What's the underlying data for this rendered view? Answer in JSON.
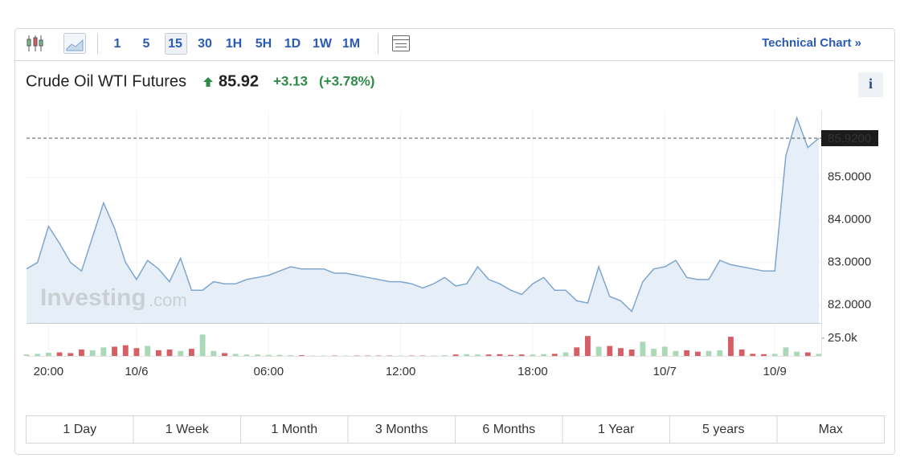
{
  "toolbar": {
    "intervals": [
      "1",
      "5",
      "15",
      "30",
      "1H",
      "5H",
      "1D",
      "1W",
      "1M"
    ],
    "technical_chart": "Technical Chart »"
  },
  "header": {
    "name": "Crude Oil WTI Futures",
    "price": "85.92",
    "change": "+3.13",
    "change_pct": "(+3.78%)",
    "info": "i"
  },
  "watermark": {
    "brand": "Investing",
    "suffix": ".com"
  },
  "chart_data": {
    "type": "line",
    "categories": [
      null,
      null,
      "20:00",
      null,
      null,
      null,
      null,
      null,
      null,
      null,
      "10/6",
      null,
      null,
      null,
      null,
      null,
      null,
      null,
      null,
      null,
      null,
      null,
      "06:00",
      null,
      null,
      null,
      null,
      null,
      null,
      null,
      null,
      null,
      null,
      null,
      "12:00",
      null,
      null,
      null,
      null,
      null,
      null,
      null,
      null,
      null,
      null,
      null,
      "18:00",
      null,
      null,
      null,
      null,
      null,
      null,
      null,
      null,
      null,
      null,
      null,
      "10/7",
      null,
      null,
      null,
      null,
      null,
      null,
      null,
      null,
      null,
      "10/9",
      null,
      null,
      null,
      null
    ],
    "series": [
      {
        "name": "Price",
        "color": "#7fa6cf",
        "fill": "#e6eff8",
        "values": [
          82.85,
          83.0,
          83.85,
          83.45,
          83.0,
          82.8,
          83.6,
          84.4,
          83.8,
          83.0,
          82.6,
          83.05,
          82.85,
          82.55,
          83.1,
          82.35,
          82.35,
          82.55,
          82.5,
          82.5,
          82.6,
          82.65,
          82.7,
          82.8,
          82.9,
          82.85,
          82.85,
          82.85,
          82.75,
          82.75,
          82.7,
          82.65,
          82.6,
          82.55,
          82.55,
          82.5,
          82.4,
          82.5,
          82.65,
          82.45,
          82.5,
          82.9,
          82.6,
          82.5,
          82.35,
          82.25,
          82.5,
          82.65,
          82.35,
          82.35,
          82.1,
          82.05,
          82.9,
          82.2,
          82.1,
          81.85,
          82.55,
          82.85,
          82.9,
          83.05,
          82.65,
          82.6,
          82.6,
          83.05,
          82.95,
          82.9,
          82.85,
          82.8,
          82.8,
          85.5,
          86.4,
          85.7,
          85.92
        ]
      },
      {
        "name": "Volume",
        "up_color": "#a9d9b6",
        "down_color": "#d65f66",
        "values": [
          2000,
          3000,
          4500,
          5000,
          4000,
          9000,
          8000,
          12000,
          13000,
          15000,
          11000,
          14000,
          8000,
          9000,
          7000,
          10000,
          30000,
          7000,
          4000,
          3000,
          2000,
          2000,
          1500,
          1500,
          1000,
          1000,
          500,
          500,
          500,
          500,
          500,
          500,
          500,
          500,
          500,
          500,
          500,
          500,
          1000,
          2000,
          2500,
          2000,
          2000,
          2500,
          1500,
          2000,
          2000,
          2500,
          3000,
          5000,
          12000,
          28000,
          13000,
          14000,
          11000,
          9000,
          20000,
          10000,
          13000,
          7000,
          8000,
          6000,
          7000,
          8000,
          27000,
          9000,
          3000,
          2500,
          3000,
          12000,
          6000,
          5000,
          3000
        ]
      }
    ],
    "ylim": [
      81.58,
      86.58
    ],
    "yticks": [
      {
        "value": 82,
        "label": "82.0000"
      },
      {
        "value": 83,
        "label": "83.0000"
      },
      {
        "value": 84,
        "label": "84.0000"
      },
      {
        "value": 85,
        "label": "85.0000"
      }
    ],
    "current": {
      "value": 85.92,
      "label": "85.9200"
    },
    "vlim": [
      0,
      44000
    ],
    "vticks": [
      {
        "value": 25000,
        "label": "25.0k"
      }
    ],
    "grid": true
  },
  "ranges": [
    "1 Day",
    "1 Week",
    "1 Month",
    "3 Months",
    "6 Months",
    "1 Year",
    "5 years",
    "Max"
  ]
}
